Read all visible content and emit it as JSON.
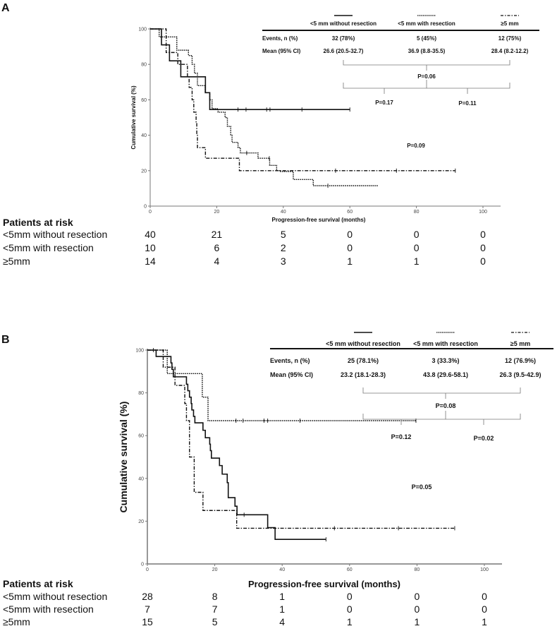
{
  "chart_data": [
    {
      "panel": "A",
      "type": "line",
      "subtype": "kaplan-meier",
      "xlabel": "Progression-free survival (months)",
      "ylabel": "Cumulative survival (%)",
      "xlim": [
        0,
        105
      ],
      "ylim": [
        0,
        100
      ],
      "xticks": [
        "0",
        "20",
        "40",
        "60",
        "80",
        "100"
      ],
      "yticks": [
        "0",
        "20",
        "40",
        "60",
        "80",
        "100"
      ],
      "series": [
        {
          "name": "<5 mm without resection",
          "style": "solid",
          "end": 60,
          "steps": [
            [
              3.4,
              91
            ],
            [
              5.8,
              82
            ],
            [
              9.2,
              73
            ],
            [
              16.6,
              64
            ],
            [
              17.9,
              54.5
            ]
          ],
          "censored": [
            26.4,
            28.8,
            35,
            36,
            45.6,
            60
          ]
        },
        {
          "name": "<5 mm  with resection",
          "style": "dotted",
          "end": 68.4,
          "steps": [
            [
              2.7,
              95.5
            ],
            [
              8,
              88
            ],
            [
              11.5,
              85
            ],
            [
              12.6,
              80
            ],
            [
              13.3,
              75
            ],
            [
              14.2,
              68
            ],
            [
              16.5,
              64
            ],
            [
              17.9,
              60
            ],
            [
              18.6,
              55
            ],
            [
              20.4,
              53
            ],
            [
              22.5,
              50
            ],
            [
              23.2,
              45
            ],
            [
              24.2,
              40
            ],
            [
              24.6,
              36
            ],
            [
              26.4,
              33
            ],
            [
              27.1,
              30
            ],
            [
              32.4,
              27
            ],
            [
              35.9,
              23
            ],
            [
              38,
              20
            ],
            [
              39,
              19.5
            ],
            [
              43,
              15
            ],
            [
              49,
              11.5
            ]
          ],
          "censored": [
            29,
            35.8,
            53.4
          ]
        },
        {
          "name": "≥5 mm",
          "style": "dashdot",
          "end": 91.7,
          "steps": [
            [
              4.8,
              86.7
            ],
            [
              8.3,
              80
            ],
            [
              11.2,
              73
            ],
            [
              11.7,
              67
            ],
            [
              12.6,
              60
            ],
            [
              13.1,
              53
            ],
            [
              13.8,
              47
            ],
            [
              14,
              40
            ],
            [
              14.2,
              33
            ],
            [
              16.6,
              27
            ],
            [
              26.8,
              20
            ]
          ],
          "censored": [
            55.7,
            74,
            91.7
          ]
        }
      ],
      "table": {
        "headers": [
          "<5 mm without resection",
          "<5 mm  with resection",
          "≥5 mm"
        ],
        "rows": [
          {
            "label": "Events, n (%)",
            "values": [
              "32 (78%)",
              "5 (45%)",
              "12 (75%)"
            ]
          },
          {
            "label": "Mean (95% CI)",
            "values": [
              "26.6 (20.5-32.7)",
              "36.9 (8.8-35.5)",
              "28.4 (8.2-12.2)"
            ]
          }
        ],
        "p_overall": "P=0.06",
        "p_left": "P=0.17",
        "p_right": "P=0.11"
      },
      "p_logrank": "P=0.09",
      "risk": {
        "title": "Patients at risk",
        "rows": [
          {
            "label": "<5mm without resection",
            "values": [
              "40",
              "21",
              "5",
              "0",
              "0",
              "0"
            ]
          },
          {
            "label": "<5mm with resection",
            "values": [
              "10",
              "6",
              "2",
              "0",
              "0",
              "0"
            ]
          },
          {
            "label": "≥5mm",
            "values": [
              "14",
              "4",
              "3",
              "1",
              "1",
              "0"
            ]
          }
        ]
      }
    },
    {
      "panel": "B",
      "type": "line",
      "subtype": "kaplan-meier",
      "xlabel": "Progression-free survival (months)",
      "ylabel": "Cumulative survival (%)",
      "xlim": [
        0,
        105
      ],
      "ylim": [
        0,
        100
      ],
      "xticks": [
        "0",
        "20",
        "40",
        "60",
        "80",
        "100"
      ],
      "yticks": [
        "0",
        "20",
        "40",
        "60",
        "80",
        "100"
      ],
      "series": [
        {
          "name": "<5 mm without resection",
          "style": "solid",
          "end": 53,
          "steps": [
            [
              2.6,
              97
            ],
            [
              7,
              94
            ],
            [
              7.3,
              91
            ],
            [
              7.7,
              87.5
            ],
            [
              11.6,
              84
            ],
            [
              12,
              81
            ],
            [
              12.5,
              78
            ],
            [
              13,
              75
            ],
            [
              13.2,
              72
            ],
            [
              13.7,
              69
            ],
            [
              14.1,
              66
            ],
            [
              16.5,
              62.5
            ],
            [
              17.2,
              59
            ],
            [
              18.5,
              56
            ],
            [
              18.7,
              53
            ],
            [
              19,
              49.5
            ],
            [
              21.4,
              46
            ],
            [
              22.2,
              42
            ],
            [
              23.7,
              38
            ],
            [
              24,
              31
            ],
            [
              26,
              27
            ],
            [
              26.6,
              23
            ],
            [
              35.7,
              17
            ],
            [
              37.9,
              11.5
            ]
          ],
          "censored": [
            1.8,
            28.7,
            53
          ]
        },
        {
          "name": "<5 mm  with resection",
          "style": "dotted",
          "end": 79.7,
          "steps": [
            [
              5.9,
              89
            ],
            [
              16.3,
              78
            ],
            [
              18,
              67
            ]
          ],
          "censored": [
            26.3,
            28.4,
            34.6,
            35.7,
            45.3,
            79.7
          ]
        },
        {
          "name": "≥5 mm",
          "style": "dashdot",
          "end": 91.2,
          "steps": [
            [
              4.7,
              92
            ],
            [
              8.2,
              83.5
            ],
            [
              11.1,
              75
            ],
            [
              11.6,
              67
            ],
            [
              12.5,
              50
            ],
            [
              13.9,
              33.5
            ],
            [
              16.5,
              25
            ],
            [
              26.5,
              16.7
            ]
          ],
          "censored": [
            55.5,
            74.5,
            91.2
          ]
        }
      ],
      "table": {
        "headers": [
          "<5 mm without resection",
          "<5 mm  with resection",
          "≥5 mm"
        ],
        "rows": [
          {
            "label": "Events, n (%)",
            "values": [
              "25 (78.1%)",
              "3 (33.3%)",
              "12 (76.9%)"
            ]
          },
          {
            "label": "Mean (95% CI)",
            "values": [
              "23.2 (18.1-28.3)",
              "43.8 (29.6-58.1)",
              "26.3 (9.5-42.9)"
            ]
          }
        ],
        "p_overall": "P=0.08",
        "p_left": "P=0.12",
        "p_right": "P=0.02"
      },
      "p_logrank": "P=0.05",
      "risk": {
        "title": "Patients at risk",
        "rows": [
          {
            "label": "<5mm without resection",
            "values": [
              "28",
              "8",
              "1",
              "0",
              "0",
              "0"
            ]
          },
          {
            "label": "<5mm with resection",
            "values": [
              "7",
              "7",
              "1",
              "0",
              "0",
              "0"
            ]
          },
          {
            "label": "≥5mm",
            "values": [
              "15",
              "5",
              "4",
              "1",
              "1",
              "1"
            ]
          }
        ]
      }
    }
  ]
}
